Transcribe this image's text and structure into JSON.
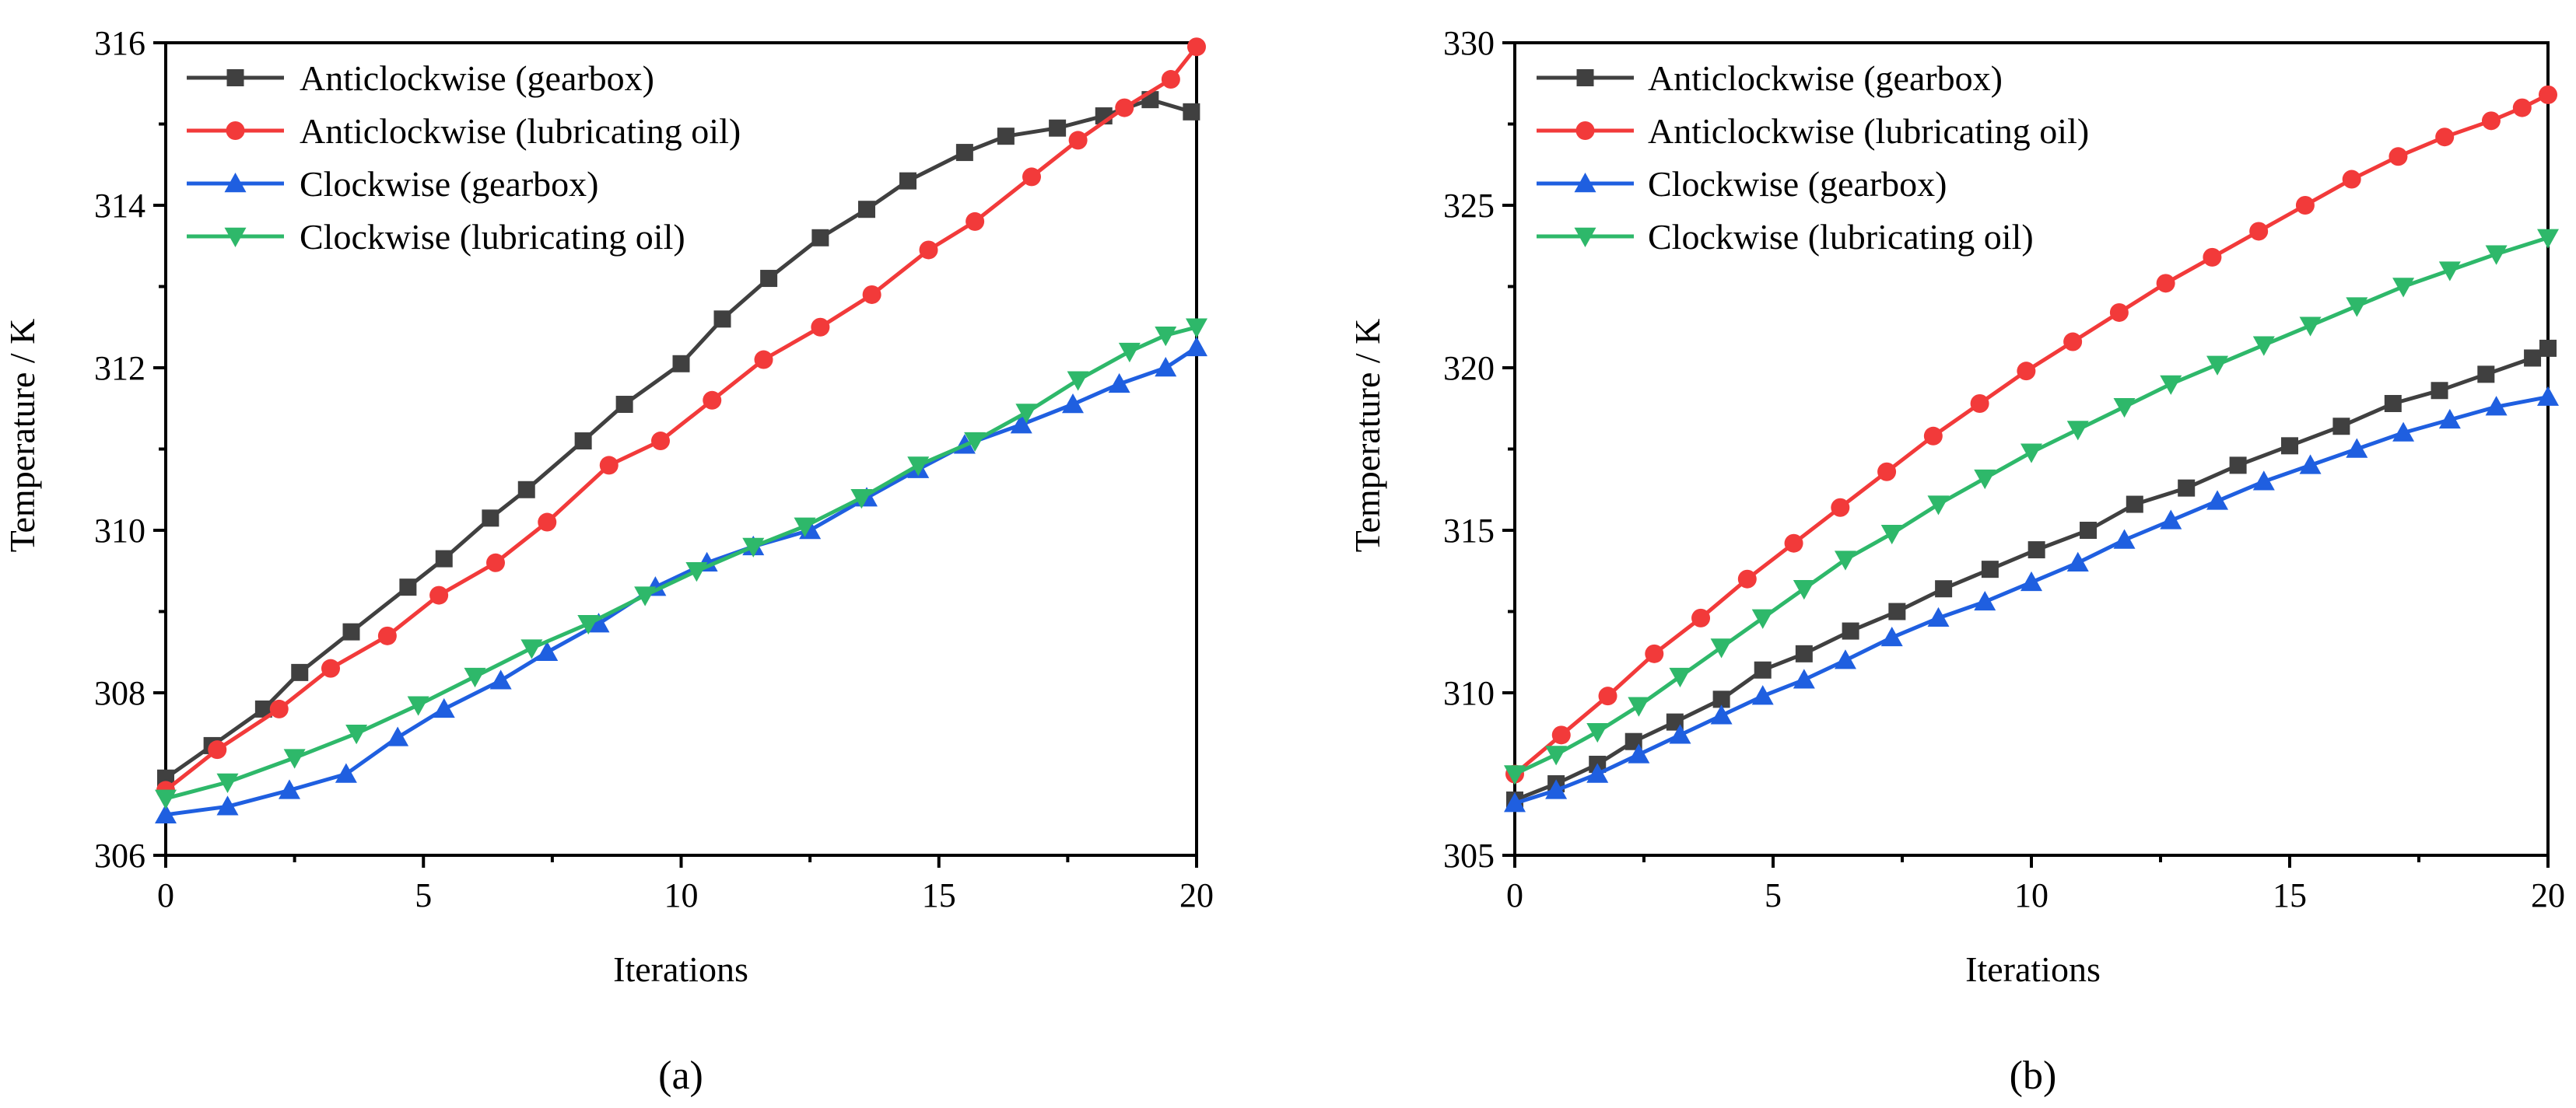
{
  "chart_data": [
    {
      "type": "line",
      "panel_label": "(a)",
      "title": "",
      "xlabel": "Iterations",
      "ylabel": "Temperature / K",
      "xlim": [
        0,
        20
      ],
      "ylim": [
        306,
        316
      ],
      "xticks": [
        0,
        5,
        10,
        15,
        20
      ],
      "yticks": [
        306,
        308,
        310,
        312,
        314,
        316
      ],
      "legend_position": "top-left",
      "grid": false,
      "series": [
        {
          "name": "Anticlockwise (gearbox)",
          "color": "#404040",
          "marker": "square",
          "x": [
            0,
            0.9,
            1.9,
            2.6,
            3.6,
            4.7,
            5.4,
            6.3,
            7.0,
            8.1,
            8.9,
            10.0,
            10.8,
            11.7,
            12.7,
            13.6,
            14.4,
            15.5,
            16.3,
            17.3,
            18.2,
            19.1,
            19.9
          ],
          "values": [
            306.95,
            307.35,
            307.8,
            308.25,
            308.75,
            309.3,
            309.65,
            310.15,
            310.5,
            311.1,
            311.55,
            312.05,
            312.6,
            313.1,
            313.6,
            313.95,
            314.3,
            314.65,
            314.85,
            314.95,
            315.1,
            315.3,
            315.15
          ]
        },
        {
          "name": "Anticlockwise (lubricating oil)",
          "color": "#f23a3a",
          "marker": "circle",
          "x": [
            0,
            1.0,
            2.2,
            3.2,
            4.3,
            5.3,
            6.4,
            7.4,
            8.6,
            9.6,
            10.6,
            11.6,
            12.7,
            13.7,
            14.8,
            15.7,
            16.8,
            17.7,
            18.6,
            19.5,
            20.0
          ],
          "values": [
            306.8,
            307.3,
            307.8,
            308.3,
            308.7,
            309.2,
            309.6,
            310.1,
            310.8,
            311.1,
            311.6,
            312.1,
            312.5,
            312.9,
            313.45,
            313.8,
            314.35,
            314.8,
            315.2,
            315.55,
            315.95
          ]
        },
        {
          "name": "Clockwise (gearbox)",
          "color": "#1f5fe0",
          "marker": "triangle-up",
          "x": [
            0,
            1.2,
            2.4,
            3.5,
            4.5,
            5.4,
            6.5,
            7.4,
            8.4,
            9.5,
            10.5,
            11.4,
            12.5,
            13.6,
            14.6,
            15.5,
            16.6,
            17.6,
            18.5,
            19.4,
            20.0
          ],
          "values": [
            306.5,
            306.6,
            306.8,
            307.0,
            307.45,
            307.8,
            308.15,
            308.5,
            308.85,
            309.3,
            309.6,
            309.8,
            310.0,
            310.4,
            310.75,
            311.05,
            311.3,
            311.55,
            311.8,
            312.0,
            312.25
          ]
        },
        {
          "name": "Clockwise (lubricating oil)",
          "color": "#2eb86a",
          "marker": "triangle-down",
          "x": [
            0,
            1.2,
            2.5,
            3.7,
            4.9,
            6.0,
            7.1,
            8.2,
            9.3,
            10.3,
            11.4,
            12.4,
            13.5,
            14.6,
            15.7,
            16.7,
            17.7,
            18.7,
            19.4,
            20.0
          ],
          "values": [
            306.7,
            306.9,
            307.2,
            307.5,
            307.85,
            308.2,
            308.55,
            308.85,
            309.2,
            309.5,
            309.8,
            310.05,
            310.4,
            310.8,
            311.1,
            311.45,
            311.85,
            312.2,
            312.4,
            312.5
          ]
        }
      ]
    },
    {
      "type": "line",
      "panel_label": "(b)",
      "title": "",
      "xlabel": "Iterations",
      "ylabel": "Temperature / K",
      "xlim": [
        0,
        20
      ],
      "ylim": [
        305,
        330
      ],
      "xticks": [
        0,
        5,
        10,
        15,
        20
      ],
      "yticks": [
        305,
        310,
        315,
        320,
        325,
        330
      ],
      "legend_position": "top-left",
      "grid": false,
      "series": [
        {
          "name": "Anticlockwise (gearbox)",
          "color": "#404040",
          "marker": "square",
          "x": [
            0,
            0.8,
            1.6,
            2.3,
            3.1,
            4.0,
            4.8,
            5.6,
            6.5,
            7.4,
            8.3,
            9.2,
            10.1,
            11.1,
            12.0,
            13.0,
            14.0,
            15.0,
            16.0,
            17.0,
            17.9,
            18.8,
            19.7,
            20.0
          ],
          "values": [
            306.7,
            307.2,
            307.8,
            308.5,
            309.1,
            309.8,
            310.7,
            311.2,
            311.9,
            312.5,
            313.2,
            313.8,
            314.4,
            315.0,
            315.8,
            316.3,
            317.0,
            317.6,
            318.2,
            318.9,
            319.3,
            319.8,
            320.3,
            320.6
          ]
        },
        {
          "name": "Anticlockwise (lubricating oil)",
          "color": "#f23a3a",
          "marker": "circle",
          "x": [
            0,
            0.9,
            1.8,
            2.7,
            3.6,
            4.5,
            5.4,
            6.3,
            7.2,
            8.1,
            9.0,
            9.9,
            10.8,
            11.7,
            12.6,
            13.5,
            14.4,
            15.3,
            16.2,
            17.1,
            18.0,
            18.9,
            19.5,
            20.0
          ],
          "values": [
            307.5,
            308.7,
            309.9,
            311.2,
            312.3,
            313.5,
            314.6,
            315.7,
            316.8,
            317.9,
            318.9,
            319.9,
            320.8,
            321.7,
            322.6,
            323.4,
            324.2,
            325.0,
            325.8,
            326.5,
            327.1,
            327.6,
            328.0,
            328.4
          ]
        },
        {
          "name": "Clockwise (gearbox)",
          "color": "#1f5fe0",
          "marker": "triangle-up",
          "x": [
            0,
            0.8,
            1.6,
            2.4,
            3.2,
            4.0,
            4.8,
            5.6,
            6.4,
            7.3,
            8.2,
            9.1,
            10.0,
            10.9,
            11.8,
            12.7,
            13.6,
            14.5,
            15.4,
            16.3,
            17.2,
            18.1,
            19.0,
            20.0
          ],
          "values": [
            306.6,
            307.0,
            307.5,
            308.1,
            308.7,
            309.3,
            309.9,
            310.4,
            311.0,
            311.7,
            312.3,
            312.8,
            313.4,
            314.0,
            314.7,
            315.3,
            315.9,
            316.5,
            317.0,
            317.5,
            318.0,
            318.4,
            318.8,
            319.1
          ]
        },
        {
          "name": "Clockwise (lubricating oil)",
          "color": "#2eb86a",
          "marker": "triangle-down",
          "x": [
            0,
            0.8,
            1.6,
            2.4,
            3.2,
            4.0,
            4.8,
            5.6,
            6.4,
            7.3,
            8.2,
            9.1,
            10.0,
            10.9,
            11.8,
            12.7,
            13.6,
            14.5,
            15.4,
            16.3,
            17.2,
            18.1,
            19.0,
            20.0
          ],
          "values": [
            307.5,
            308.1,
            308.8,
            309.6,
            310.5,
            311.4,
            312.3,
            313.2,
            314.1,
            314.9,
            315.8,
            316.6,
            317.4,
            318.1,
            318.8,
            319.5,
            320.1,
            320.7,
            321.3,
            321.9,
            322.5,
            323.0,
            323.5,
            324.0
          ]
        }
      ]
    }
  ]
}
